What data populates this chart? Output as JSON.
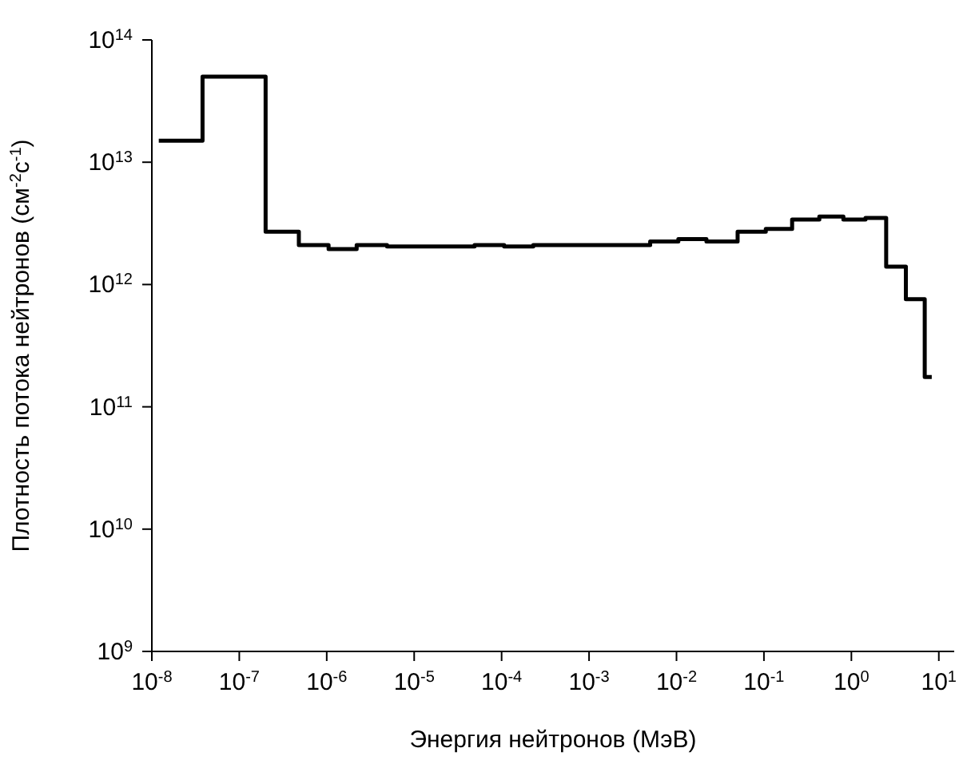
{
  "chart_data": {
    "type": "step",
    "xlabel": "Энергия нейтронов (МэВ)",
    "ylabel": "Плотность потока нейтронов (см$^{-2}$с$^{-1}$)",
    "x": [
      1.2e-08,
      3.8e-08,
      2e-07,
      4.8e-07,
      1.05e-06,
      2.2e-06,
      4.9e-06,
      4.9e-05,
      0.000107,
      0.00023,
      0.005,
      0.0105,
      0.022,
      0.05,
      0.105,
      0.21,
      0.43,
      0.81,
      1.45,
      2.5,
      4.2,
      6.9,
      8.3
    ],
    "series": [
      {
        "color": "#000000",
        "values": [
          15000000000000.0,
          50000000000000.0,
          2700000000000.0,
          2100000000000.0,
          1950000000000.0,
          2100000000000.0,
          2050000000000.0,
          2100000000000.0,
          2050000000000.0,
          2100000000000.0,
          2250000000000.0,
          2350000000000.0,
          2250000000000.0,
          2700000000000.0,
          2850000000000.0,
          3400000000000.0,
          3600000000000.0,
          3400000000000.0,
          3500000000000.0,
          1400000000000.0,
          760000000000.0,
          175000000000.0,
          175000000000.0
        ]
      }
    ],
    "log": "xy",
    "grid": false,
    "legend": false,
    "marker": "none",
    "line_style": "solid",
    "xlim": [
      1e-08,
      15
    ],
    "xticks": [
      {
        "value": 1e-08,
        "label": "10$^{-8}$"
      },
      {
        "value": 1e-07,
        "label": "10$^{-7}$"
      },
      {
        "value": 1e-06,
        "label": "10$^{-6}$"
      },
      {
        "value": 1e-05,
        "label": "10$^{-5}$"
      },
      {
        "value": 0.0001,
        "label": "10$^{-4}$"
      },
      {
        "value": 0.001,
        "label": "10$^{-3}$"
      },
      {
        "value": 0.01,
        "label": "10$^{-2}$"
      },
      {
        "value": 0.1,
        "label": "10$^{-1}$"
      },
      {
        "value": 1,
        "label": "10$^{0}$"
      },
      {
        "value": 10,
        "label": "10$^{1}$"
      }
    ],
    "ylim": [
      1000000000.0,
      100000000000000.0
    ],
    "yticks": [
      {
        "value": 1000000000.0,
        "label": "10$^{9}$"
      },
      {
        "value": 10000000000.0,
        "label": "10$^{10}$"
      },
      {
        "value": 100000000000.0,
        "label": "10$^{11}$"
      },
      {
        "value": 1000000000000.0,
        "label": "10$^{12}$"
      },
      {
        "value": 10000000000000.0,
        "label": "10$^{13}$"
      },
      {
        "value": 100000000000000.0,
        "label": "10$^{14}$"
      }
    ]
  }
}
